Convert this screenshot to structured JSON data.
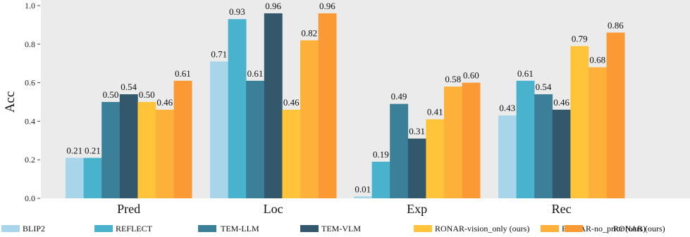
{
  "chart_data": {
    "type": "bar",
    "title": "",
    "xlabel": "",
    "ylabel": "Acc",
    "ylim": [
      0,
      1.0
    ],
    "yticks": [
      0.0,
      0.2,
      0.4,
      0.6,
      0.8,
      1.0
    ],
    "ytick_labels": [
      "0.0",
      "0.2",
      "0.4",
      "0.6",
      "0.8",
      "1.0"
    ],
    "grid": false,
    "legend_position": "bottom",
    "categories": [
      "Pred",
      "Loc",
      "Exp",
      "Rec"
    ],
    "series": [
      {
        "name": "BLIP2",
        "color": "#a8d5ea",
        "values": [
          0.21,
          0.71,
          0.01,
          0.43
        ],
        "labels": [
          "0.21",
          "0.71",
          "0.01",
          "0.43"
        ]
      },
      {
        "name": "REFLECT",
        "color": "#49b2cc",
        "values": [
          0.21,
          0.93,
          0.19,
          0.61
        ],
        "labels": [
          "0.21",
          "0.93",
          "0.19",
          "0.61"
        ]
      },
      {
        "name": "TEM-LLM",
        "color": "#3c7f99",
        "values": [
          0.5,
          0.61,
          0.49,
          0.54
        ],
        "labels": [
          "0.50",
          "0.61",
          "0.49",
          "0.54"
        ]
      },
      {
        "name": "TEM-VLM",
        "color": "#33586b",
        "values": [
          0.54,
          0.96,
          0.31,
          0.46
        ],
        "labels": [
          "0.54",
          "0.96",
          "0.31",
          "0.46"
        ]
      },
      {
        "name": "RONAR-vision_only (ours)",
        "color": "#ffc43a",
        "values": [
          0.5,
          0.46,
          0.41,
          0.79
        ],
        "labels": [
          "0.50",
          "0.46",
          "0.41",
          "0.79"
        ]
      },
      {
        "name": "RONAR-no_prior (ours)",
        "color": "#fdb13b",
        "values": [
          0.46,
          0.82,
          0.58,
          0.68
        ],
        "labels": [
          "0.46",
          "0.82",
          "0.58",
          "0.68"
        ]
      },
      {
        "name": "RONAR (ours)",
        "color": "#fb9a35",
        "values": [
          0.61,
          0.96,
          0.6,
          0.86
        ],
        "labels": [
          "0.61",
          "0.96",
          "0.60",
          "0.86"
        ]
      }
    ]
  }
}
